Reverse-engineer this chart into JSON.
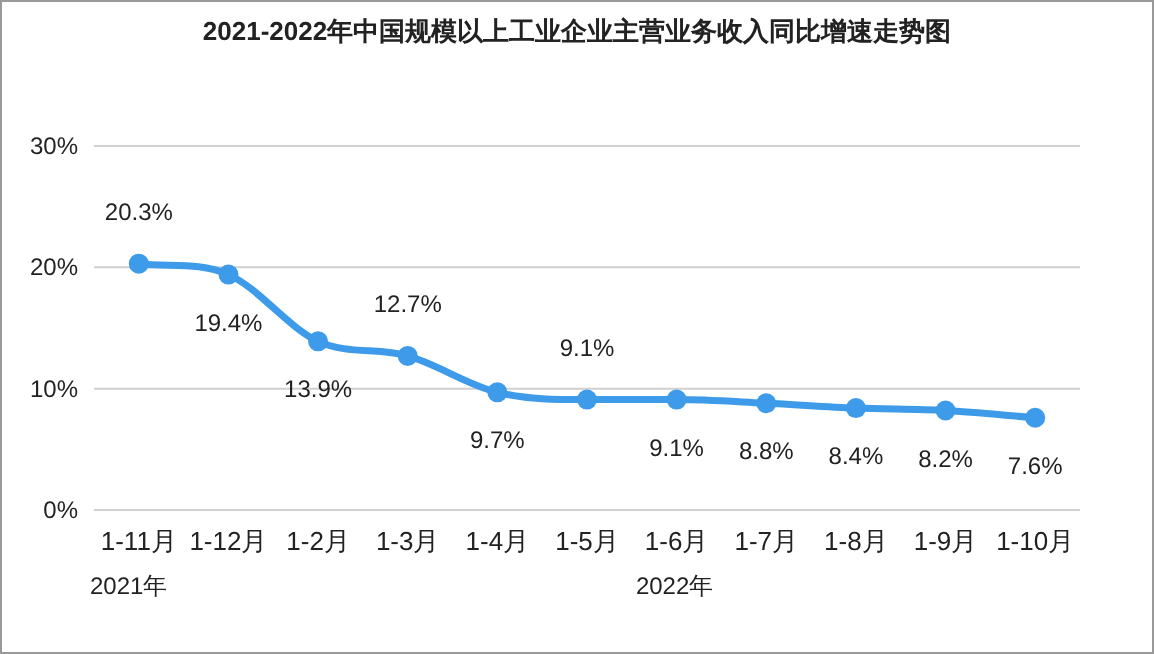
{
  "chart_data": {
    "type": "line",
    "title": "2021-2022年中国规模以上工业企业主营业务收入同比增速走势图",
    "categories": [
      "1-11月",
      "1-12月",
      "1-2月",
      "1-3月",
      "1-4月",
      "1-5月",
      "1-6月",
      "1-7月",
      "1-8月",
      "1-9月",
      "1-10月"
    ],
    "series": [
      {
        "color": "#3d9be9",
        "values": [
          20.3,
          19.4,
          13.9,
          12.7,
          9.7,
          9.1,
          9.1,
          8.8,
          8.4,
          8.2,
          7.6
        ],
        "value_labels": [
          "20.3%",
          "19.4%",
          "13.9%",
          "12.7%",
          "9.7%",
          "9.1%",
          "9.1%",
          "8.8%",
          "8.4%",
          "8.2%",
          "7.6%"
        ]
      }
    ],
    "ylim": [
      0,
      30
    ],
    "yticks": [
      {
        "value": 0,
        "label": "0%"
      },
      {
        "value": 10,
        "label": "10%"
      },
      {
        "value": 20,
        "label": "20%"
      },
      {
        "value": 30,
        "label": "30%"
      }
    ],
    "grid": "y",
    "marker": "circle",
    "line_style": "solid",
    "annotations": [
      "2021年",
      "2022年"
    ]
  }
}
